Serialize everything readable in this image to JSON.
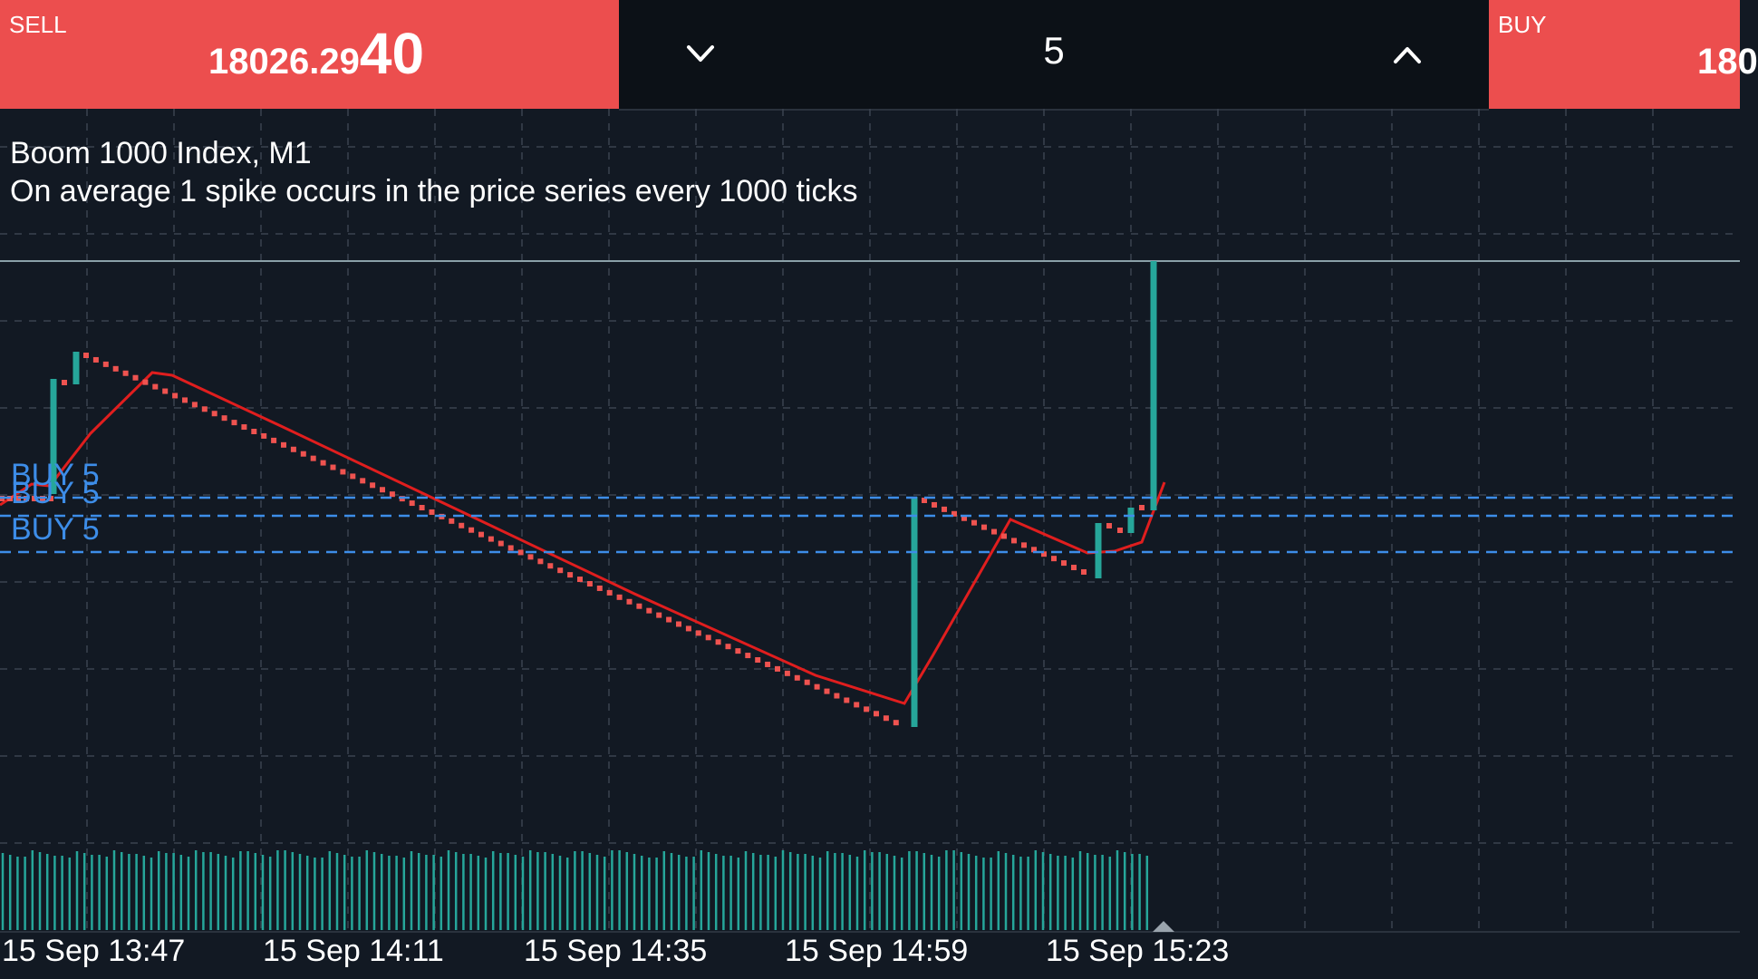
{
  "sell": {
    "label": "SELL",
    "price_small": "18026.29",
    "price_big": "40"
  },
  "buy": {
    "label": "BUY",
    "price_small": "180",
    "price_big": ""
  },
  "lot": {
    "value": "5",
    "down_icon": "chevron-down-icon",
    "up_icon": "chevron-up-icon"
  },
  "info": {
    "title": "Boom 1000 Index, M1",
    "description": "On average 1 spike occurs in the price series every 1000 ticks"
  },
  "chart_data": {
    "type": "candlestick",
    "symbol": "Boom 1000 Index",
    "timeframe": "M1",
    "x_tick_labels": [
      "15 Sep 13:47",
      "15 Sep 14:11",
      "15 Sep 14:35",
      "15 Sep 14:59",
      "15 Sep 15:23"
    ],
    "order_lines": [
      {
        "label": "BUY 5"
      },
      {
        "label": "BUY 5"
      },
      {
        "label": "BUY 5"
      }
    ],
    "colors": {
      "background": "#121923",
      "bull_candle": "#26a69a",
      "bear_candle": "#ef5350",
      "moving_average": "#e01e1e",
      "order_line": "#3d8de8",
      "grid": "#3a4250",
      "volume": "#26a69a"
    }
  }
}
